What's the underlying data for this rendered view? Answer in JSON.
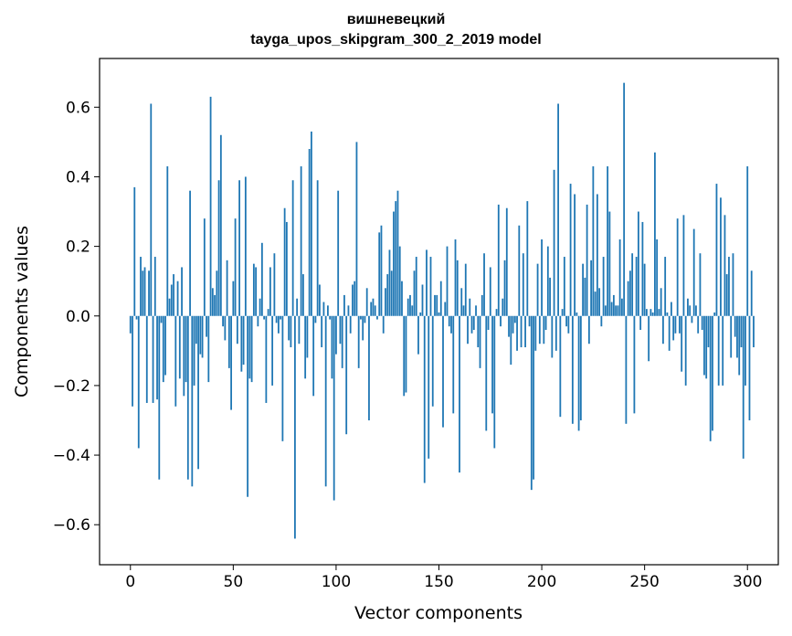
{
  "chart_data": {
    "type": "bar",
    "title": "вишневецкий",
    "subtitle": "tayga_upos_skipgram_300_2_2019 model",
    "xlabel": "Vector components",
    "ylabel": "Components values",
    "xlim": [
      -15,
      315
    ],
    "ylim": [
      -0.715,
      0.74
    ],
    "x_ticks": [
      0,
      50,
      100,
      150,
      200,
      250,
      300
    ],
    "x_tick_labels": [
      "0",
      "50",
      "100",
      "150",
      "200",
      "250",
      "300"
    ],
    "y_ticks": [
      -0.6,
      -0.4,
      -0.2,
      0.0,
      0.2,
      0.4,
      0.6
    ],
    "y_tick_labels": [
      "−0.6",
      "−0.4",
      "−0.2",
      "0.0",
      "0.2",
      "0.4",
      "0.6"
    ],
    "grid": false,
    "bar_color": "#1f77b4",
    "values": [
      -0.05,
      -0.26,
      0.37,
      -0.01,
      -0.38,
      0.17,
      0.13,
      0.14,
      -0.25,
      0.13,
      0.61,
      -0.25,
      0.17,
      -0.24,
      -0.47,
      -0.02,
      -0.19,
      -0.17,
      0.43,
      0.05,
      0.09,
      0.12,
      -0.26,
      0.1,
      -0.18,
      0.14,
      -0.23,
      -0.19,
      -0.47,
      0.36,
      -0.49,
      -0.2,
      -0.08,
      -0.44,
      -0.11,
      -0.12,
      0.28,
      -0.06,
      -0.19,
      0.63,
      0.08,
      0.06,
      0.13,
      0.39,
      0.52,
      -0.03,
      -0.07,
      0.16,
      -0.15,
      -0.27,
      0.1,
      0.28,
      -0.08,
      0.39,
      -0.16,
      -0.14,
      0.4,
      -0.52,
      -0.18,
      -0.19,
      0.15,
      0.14,
      -0.03,
      0.05,
      0.21,
      -0.01,
      -0.25,
      0.02,
      0.14,
      -0.2,
      0.18,
      -0.02,
      -0.05,
      -0.01,
      -0.36,
      0.31,
      0.27,
      -0.07,
      -0.09,
      0.39,
      -0.64,
      0.05,
      -0.08,
      0.43,
      0.12,
      -0.18,
      -0.12,
      0.48,
      0.53,
      -0.23,
      -0.02,
      0.39,
      0.09,
      -0.09,
      0.04,
      -0.49,
      0.03,
      -0.01,
      -0.18,
      -0.53,
      -0.11,
      0.36,
      -0.08,
      -0.15,
      0.06,
      -0.34,
      0.03,
      -0.05,
      0.09,
      0.1,
      0.5,
      -0.15,
      -0.01,
      -0.07,
      -0.02,
      0.08,
      -0.3,
      0.04,
      0.05,
      0.03,
      -0.01,
      0.24,
      0.26,
      -0.05,
      0.08,
      0.12,
      0.19,
      0.13,
      0.3,
      0.33,
      0.36,
      0.2,
      0.1,
      -0.23,
      -0.22,
      0.05,
      0.06,
      0.03,
      0.13,
      0.17,
      -0.11,
      0.01,
      0.09,
      -0.48,
      0.19,
      -0.41,
      0.17,
      -0.26,
      0.06,
      0.06,
      0.01,
      0.1,
      -0.32,
      0.04,
      0.2,
      -0.03,
      -0.05,
      -0.28,
      0.22,
      0.16,
      -0.45,
      0.08,
      0.03,
      0.15,
      -0.08,
      0.05,
      -0.05,
      -0.04,
      0.03,
      -0.09,
      -0.15,
      0.06,
      0.18,
      -0.33,
      -0.04,
      0.14,
      -0.28,
      -0.38,
      0.02,
      0.32,
      -0.03,
      0.05,
      0.16,
      0.31,
      -0.06,
      -0.14,
      -0.05,
      -0.02,
      -0.1,
      0.26,
      -0.09,
      0.18,
      -0.09,
      0.33,
      -0.03,
      -0.5,
      -0.47,
      -0.1,
      0.15,
      -0.08,
      0.22,
      -0.08,
      -0.04,
      0.2,
      0.11,
      -0.12,
      0.42,
      -0.1,
      0.61,
      -0.29,
      0.02,
      0.17,
      -0.03,
      -0.05,
      0.38,
      -0.31,
      0.35,
      0.01,
      -0.33,
      -0.3,
      0.15,
      0.11,
      0.32,
      -0.08,
      0.16,
      0.43,
      0.07,
      0.35,
      0.08,
      -0.03,
      0.17,
      0.03,
      0.43,
      0.3,
      0.04,
      0.06,
      0.03,
      0.03,
      0.22,
      0.05,
      0.67,
      -0.31,
      0.1,
      0.13,
      0.18,
      -0.28,
      0.17,
      0.3,
      -0.04,
      0.27,
      0.15,
      0.02,
      -0.13,
      0.02,
      0.01,
      0.47,
      0.22,
      0.02,
      0.08,
      -0.08,
      0.17,
      0.01,
      -0.1,
      0.04,
      -0.07,
      -0.05,
      0.28,
      -0.05,
      -0.16,
      0.29,
      -0.2,
      0.05,
      0.03,
      -0.02,
      0.25,
      0.03,
      -0.05,
      0.18,
      -0.04,
      -0.17,
      -0.18,
      -0.09,
      -0.36,
      -0.33,
      0.01,
      0.38,
      -0.2,
      0.34,
      -0.2,
      0.29,
      0.12,
      0.17,
      -0.12,
      0.18,
      -0.06,
      -0.12,
      -0.17,
      -0.09,
      -0.41,
      -0.2,
      0.43,
      -0.3,
      0.13,
      -0.09
    ]
  }
}
